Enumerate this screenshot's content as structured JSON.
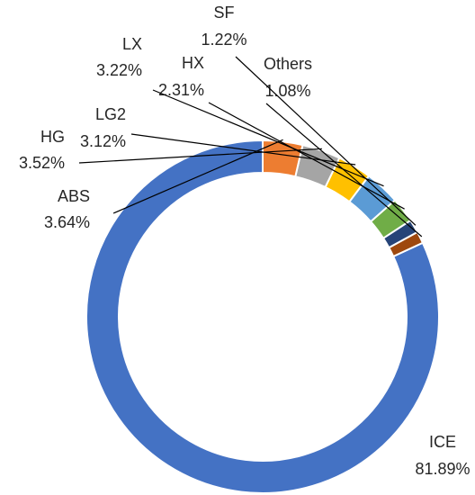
{
  "chart_data": {
    "type": "pie",
    "donut": true,
    "categories": [
      "ICE",
      "ABS",
      "HG",
      "LG2",
      "LX",
      "HX",
      "SF",
      "Others"
    ],
    "values": [
      81.89,
      3.64,
      3.52,
      3.12,
      3.22,
      2.31,
      1.22,
      1.08
    ],
    "labels": [
      "81.89%",
      "3.64%",
      "3.52%",
      "3.12%",
      "3.22%",
      "2.31%",
      "1.22%",
      "1.08%"
    ],
    "colors": [
      "#4472C4",
      "#ED7D31",
      "#A5A5A5",
      "#FFC000",
      "#5B9BD5",
      "#70AD47",
      "#264478",
      "#9E480E"
    ],
    "title": "",
    "legend": "none"
  }
}
